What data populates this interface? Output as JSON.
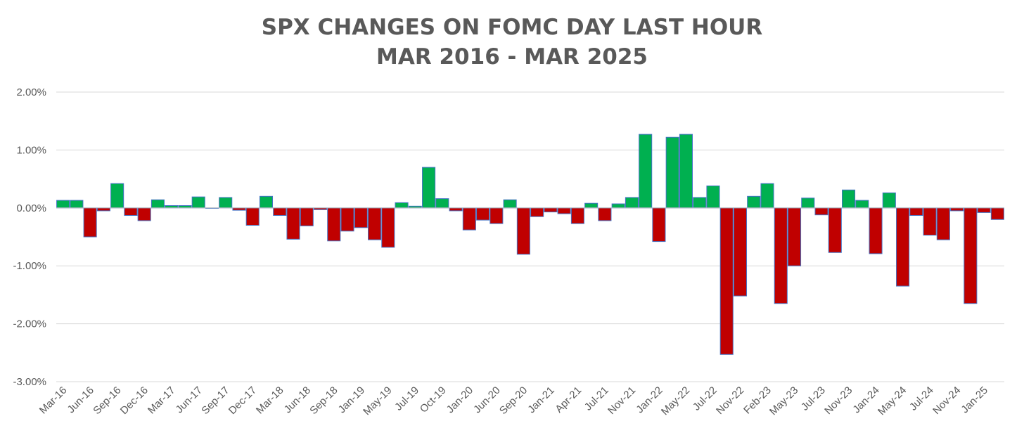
{
  "chart_data": {
    "type": "bar",
    "title": "SPX CHANGES ON FOMC DAY LAST HOUR",
    "subtitle": "MAR 2016 - MAR 2025",
    "xlabel": "",
    "ylabel": "",
    "ylim": [
      -3.0,
      2.0
    ],
    "y_ticks": [
      2.0,
      1.0,
      0.0,
      -1.0,
      -2.0,
      -3.0
    ],
    "y_tick_labels": [
      "2.00%",
      "1.00%",
      "0.00%",
      "-1.00%",
      "-2.00%",
      "-3.00%"
    ],
    "grid": true,
    "legend": "none",
    "x_tick_labels": [
      "Mar-16",
      "Jun-16",
      "Sep-16",
      "Dec-16",
      "Mar-17",
      "Jun-17",
      "Sep-17",
      "Dec-17",
      "Mar-18",
      "Jun-18",
      "Sep-18",
      "Jan-19",
      "May-19",
      "Jul-19",
      "Oct-19",
      "Jan-20",
      "Jun-20",
      "Sep-20",
      "Jan-21",
      "Apr-21",
      "Jul-21",
      "Nov-21",
      "Jan-22",
      "May-22",
      "Jul-22",
      "Nov-22",
      "Feb-23",
      "May-23",
      "Jul-23",
      "Nov-23",
      "Jan-24",
      "May-24",
      "Jul-24",
      "Nov-24",
      "Jan-25"
    ],
    "values": [
      0.13,
      0.13,
      -0.5,
      -0.05,
      0.42,
      -0.13,
      -0.22,
      0.14,
      0.04,
      0.04,
      0.19,
      0.0,
      0.18,
      -0.04,
      -0.3,
      0.2,
      -0.13,
      -0.54,
      -0.31,
      -0.03,
      -0.57,
      -0.4,
      -0.34,
      -0.55,
      -0.68,
      0.09,
      0.03,
      0.7,
      0.16,
      -0.05,
      -0.38,
      -0.21,
      -0.27,
      0.14,
      -0.8,
      -0.15,
      -0.07,
      -0.1,
      -0.27,
      0.08,
      -0.22,
      0.07,
      0.18,
      1.27,
      -0.58,
      1.22,
      1.27,
      0.18,
      0.38,
      -2.53,
      -1.52,
      0.2,
      0.42,
      -1.65,
      -1.0,
      0.17,
      -0.12,
      -0.77,
      0.31,
      0.13,
      -0.79,
      0.26,
      -1.35,
      -0.13,
      -0.47,
      -0.55,
      -0.05,
      -1.65,
      -0.08,
      -0.2
    ],
    "colors": {
      "positive": "#00b050",
      "negative": "#c00000",
      "bar_border": "#4472c4",
      "grid": "#d9d9d9",
      "zero_line": "#bfbfbf",
      "text": "#595959"
    }
  }
}
